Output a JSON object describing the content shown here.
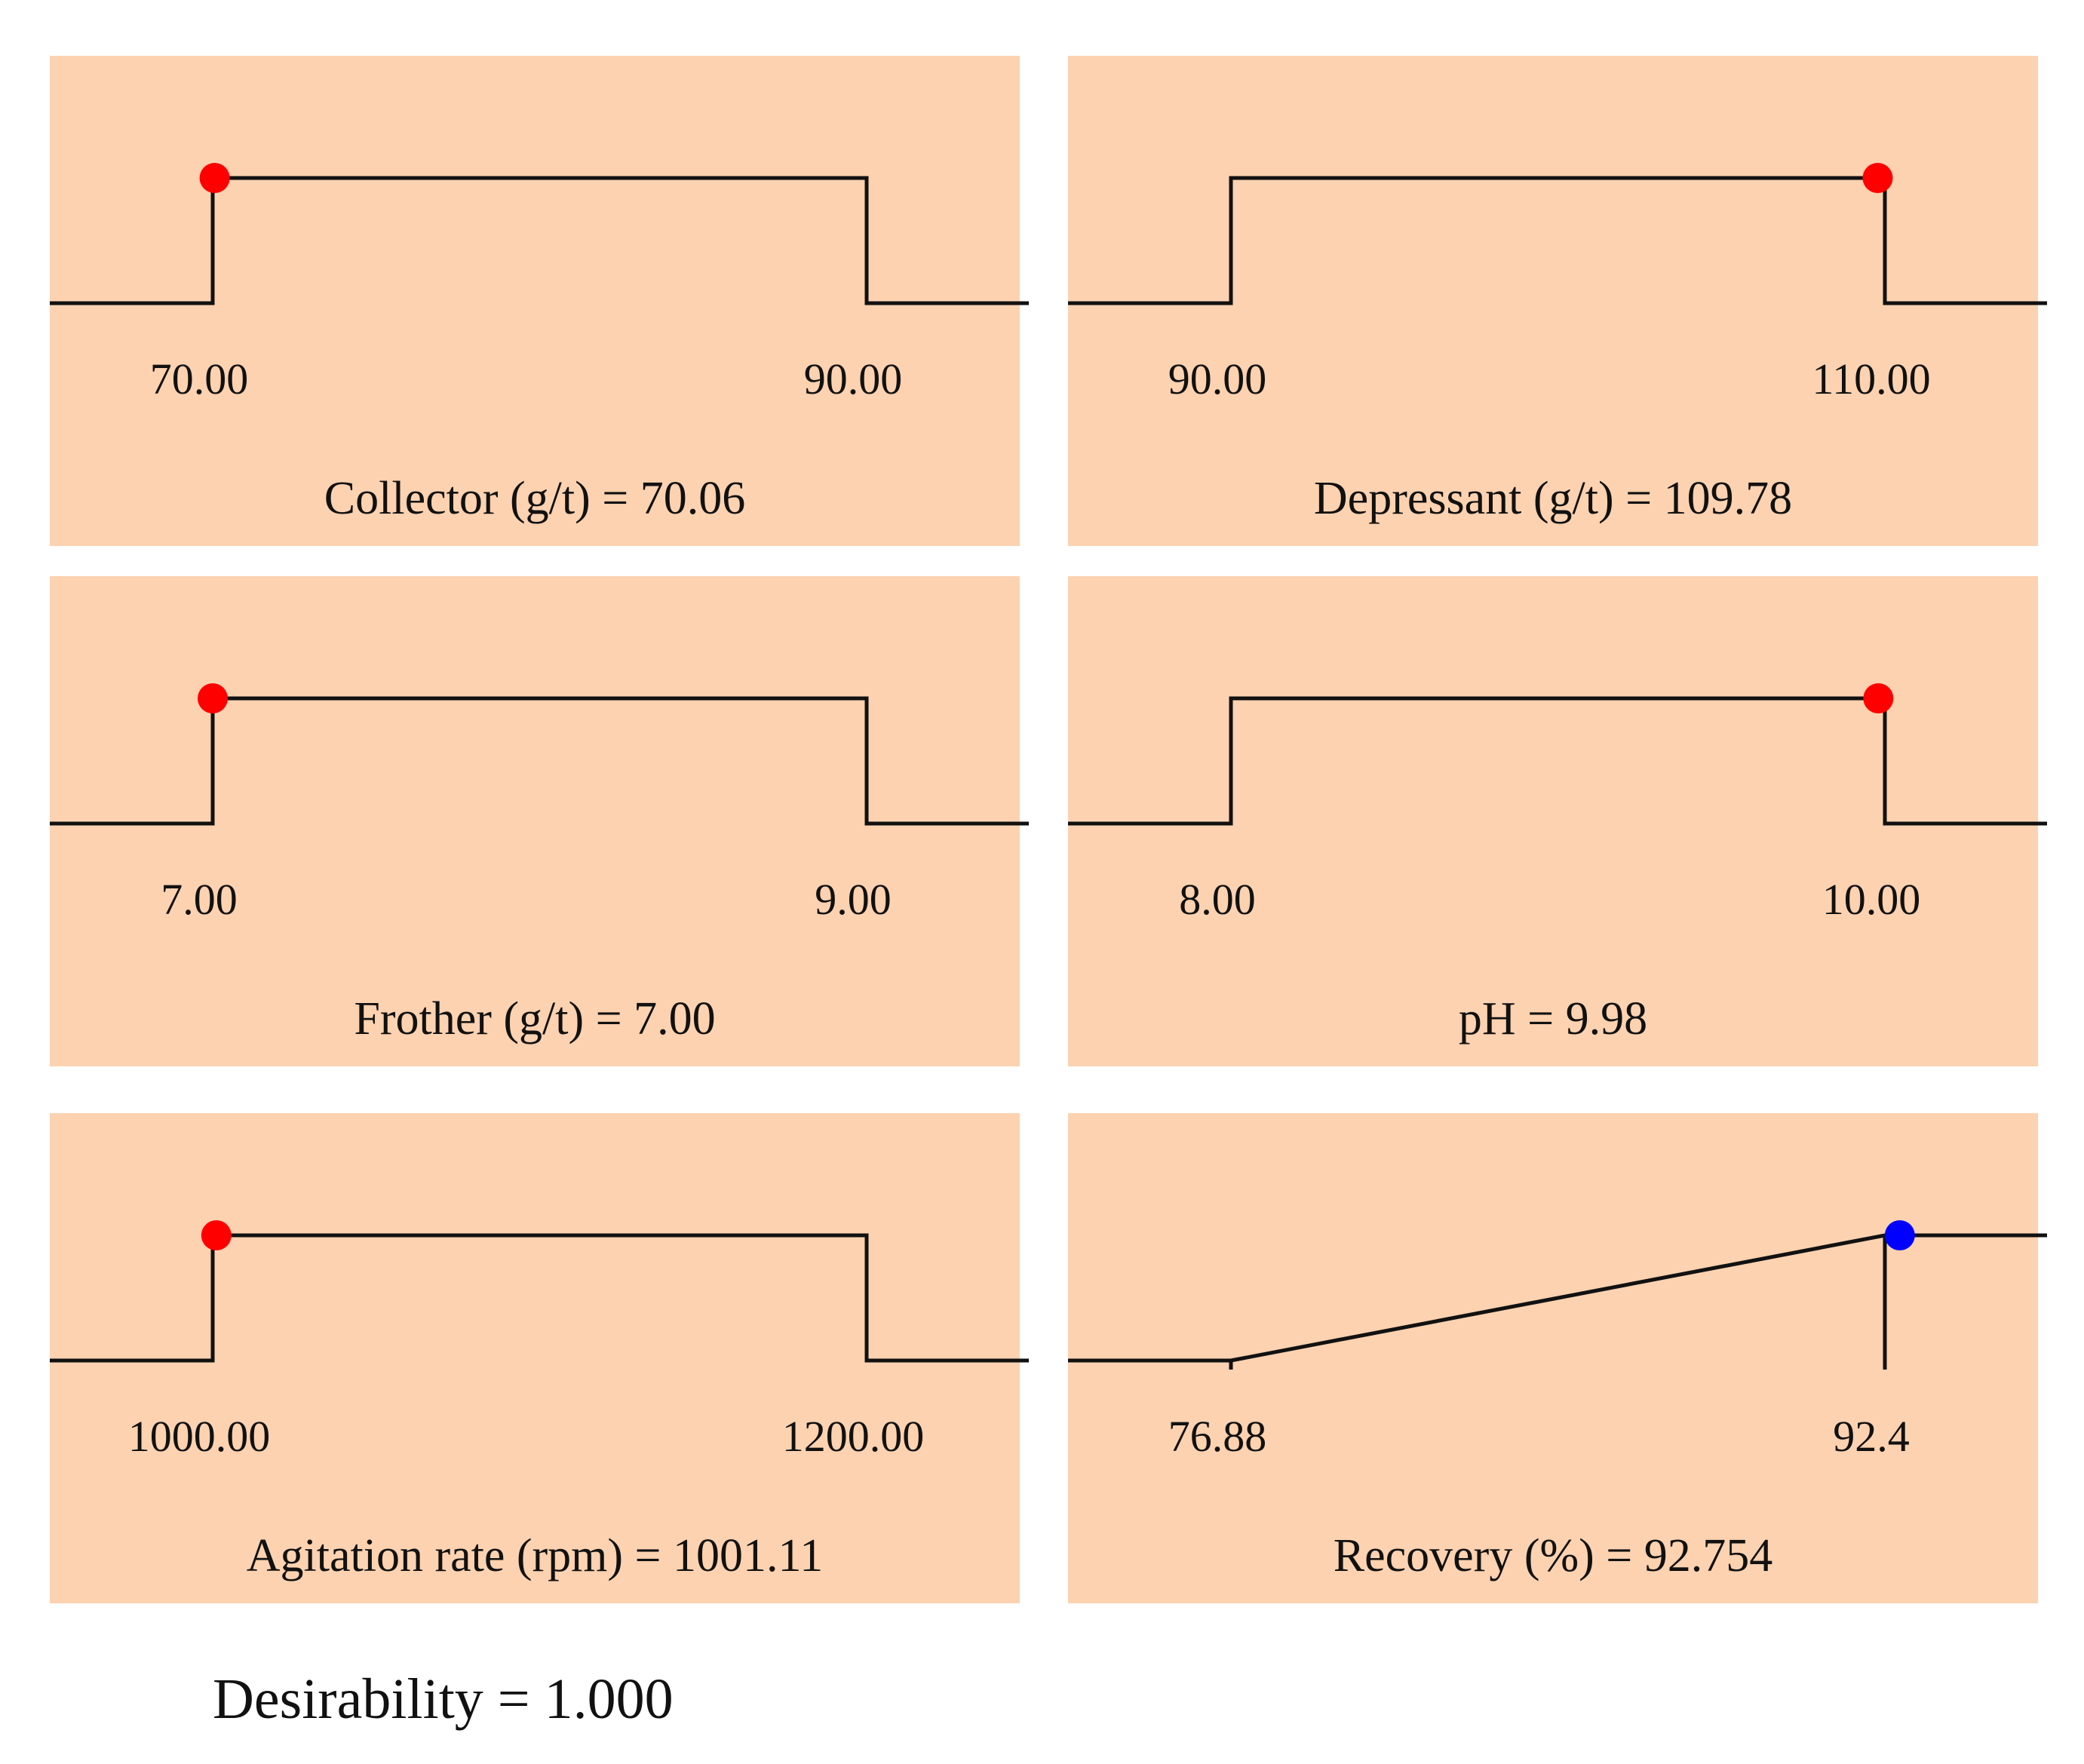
{
  "chart_data": [
    {
      "type": "line",
      "factor": "Collector (g/t)",
      "low": 70.0,
      "high": 90.0,
      "low_label": "70.00",
      "high_label": "90.00",
      "value": 70.06,
      "caption": "Collector (g/t) = 70.06",
      "shape": "range",
      "point_color": "#ff0000"
    },
    {
      "type": "line",
      "factor": "Depressant (g/t)",
      "low": 90.0,
      "high": 110.0,
      "low_label": "90.00",
      "high_label": "110.00",
      "value": 109.78,
      "caption": "Depressant (g/t) = 109.78",
      "shape": "range",
      "point_color": "#ff0000"
    },
    {
      "type": "line",
      "factor": "Frother (g/t)",
      "low": 7.0,
      "high": 9.0,
      "low_label": "7.00",
      "high_label": "9.00",
      "value": 7.0,
      "caption": "Frother (g/t) = 7.00",
      "shape": "range",
      "point_color": "#ff0000"
    },
    {
      "type": "line",
      "factor": "pH",
      "low": 8.0,
      "high": 10.0,
      "low_label": "8.00",
      "high_label": "10.00",
      "value": 9.98,
      "caption": "pH = 9.98",
      "shape": "range",
      "point_color": "#ff0000"
    },
    {
      "type": "line",
      "factor": "Agitation rate (rpm)",
      "low": 1000.0,
      "high": 1200.0,
      "low_label": "1000.00",
      "high_label": "1200.00",
      "value": 1001.11,
      "caption": "Agitation rate (rpm) = 1001.11",
      "shape": "range",
      "point_color": "#ff0000"
    },
    {
      "type": "line",
      "factor": "Recovery (%)",
      "low": 76.88,
      "high": 92.4,
      "low_label": "76.88",
      "high_label": "92.4",
      "value": 92.754,
      "caption": "Recovery (%) = 92.754",
      "shape": "maximize",
      "point_color": "#0000ff"
    }
  ],
  "desirability": "Desirability = 1.000",
  "colors": {
    "panel_background": "#fdd2b0",
    "line": "#111111"
  }
}
